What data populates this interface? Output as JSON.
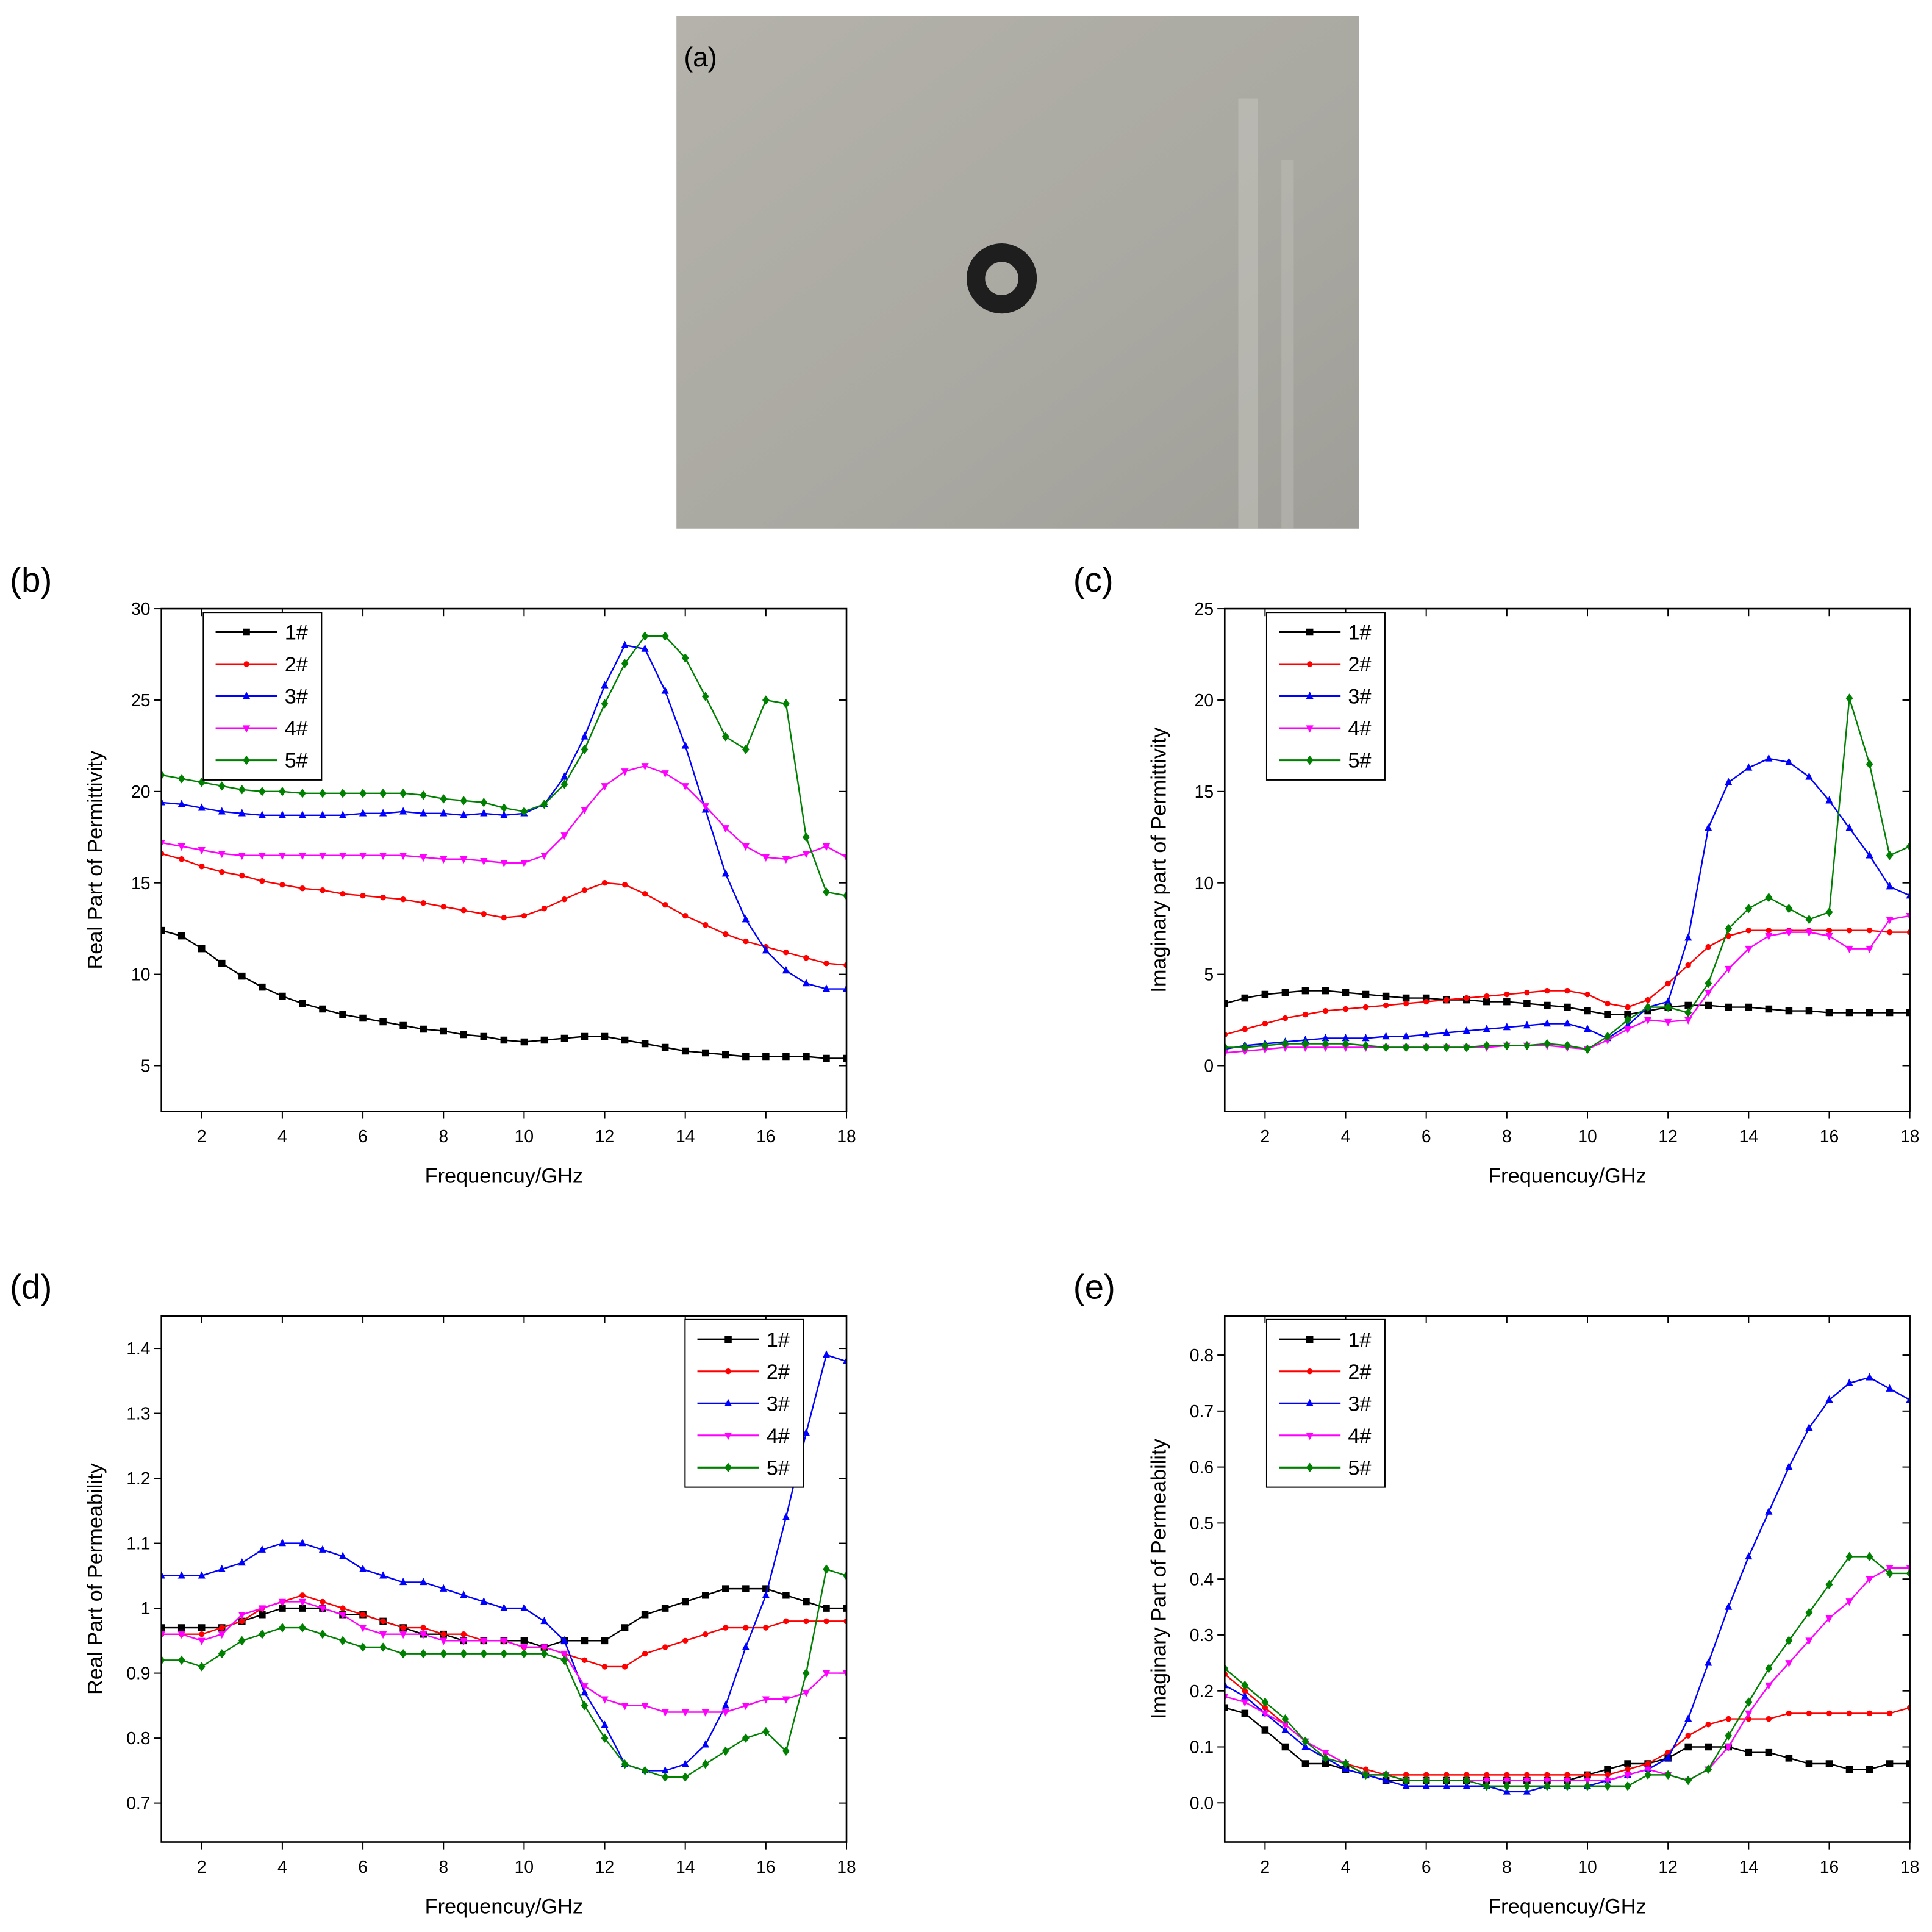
{
  "photo": {
    "label": "(a)"
  },
  "chart_data": [
    {
      "type": "line",
      "panel": "(b)",
      "xlabel": "Frequencuy/GHz",
      "ylabel": "Real Part of Permittivity",
      "legend": "upper left",
      "xlim": [
        1,
        18
      ],
      "xticks": [
        2,
        4,
        6,
        8,
        10,
        12,
        14,
        16,
        18
      ],
      "ylim": [
        2.5,
        30
      ],
      "yticks": [
        5,
        10,
        15,
        20,
        25,
        30
      ],
      "x": [
        1,
        1.5,
        2,
        2.5,
        3,
        3.5,
        4,
        4.5,
        5,
        5.5,
        6,
        6.5,
        7,
        7.5,
        8,
        8.5,
        9,
        9.5,
        10,
        10.5,
        11,
        11.5,
        12,
        12.5,
        13,
        13.5,
        14,
        14.5,
        15,
        15.5,
        16,
        16.5,
        17,
        17.5,
        18
      ],
      "series": [
        {
          "name": "1#",
          "color": "#000000",
          "marker": "square",
          "values": [
            12.4,
            12.1,
            11.4,
            10.6,
            9.9,
            9.3,
            8.8,
            8.4,
            8.1,
            7.8,
            7.6,
            7.4,
            7.2,
            7.0,
            6.9,
            6.7,
            6.6,
            6.4,
            6.3,
            6.4,
            6.5,
            6.6,
            6.6,
            6.4,
            6.2,
            6.0,
            5.8,
            5.7,
            5.6,
            5.5,
            5.5,
            5.5,
            5.5,
            5.4,
            5.4
          ]
        },
        {
          "name": "2#",
          "color": "#ff0000",
          "marker": "circle",
          "values": [
            16.6,
            16.3,
            15.9,
            15.6,
            15.4,
            15.1,
            14.9,
            14.7,
            14.6,
            14.4,
            14.3,
            14.2,
            14.1,
            13.9,
            13.7,
            13.5,
            13.3,
            13.1,
            13.2,
            13.6,
            14.1,
            14.6,
            15.0,
            14.9,
            14.4,
            13.8,
            13.2,
            12.7,
            12.2,
            11.8,
            11.5,
            11.2,
            10.9,
            10.6,
            10.5
          ]
        },
        {
          "name": "3#",
          "color": "#0000ff",
          "marker": "triangle-up",
          "values": [
            19.4,
            19.3,
            19.1,
            18.9,
            18.8,
            18.7,
            18.7,
            18.7,
            18.7,
            18.7,
            18.8,
            18.8,
            18.9,
            18.8,
            18.8,
            18.7,
            18.8,
            18.7,
            18.8,
            19.3,
            20.8,
            23.0,
            25.8,
            28.0,
            27.8,
            25.5,
            22.5,
            19.0,
            15.5,
            13.0,
            11.3,
            10.2,
            9.5,
            9.2,
            9.2
          ]
        },
        {
          "name": "4#",
          "color": "#ff00ff",
          "marker": "triangle-down",
          "values": [
            17.2,
            17.0,
            16.8,
            16.6,
            16.5,
            16.5,
            16.5,
            16.5,
            16.5,
            16.5,
            16.5,
            16.5,
            16.5,
            16.4,
            16.3,
            16.3,
            16.2,
            16.1,
            16.1,
            16.5,
            17.6,
            19.0,
            20.3,
            21.1,
            21.4,
            21.0,
            20.3,
            19.2,
            18.0,
            17.0,
            16.4,
            16.3,
            16.6,
            17.0,
            16.4
          ]
        },
        {
          "name": "5#",
          "color": "#008000",
          "marker": "diamond",
          "values": [
            20.9,
            20.7,
            20.5,
            20.3,
            20.1,
            20.0,
            20.0,
            19.9,
            19.9,
            19.9,
            19.9,
            19.9,
            19.9,
            19.8,
            19.6,
            19.5,
            19.4,
            19.1,
            18.9,
            19.3,
            20.4,
            22.3,
            24.8,
            27.0,
            28.5,
            28.5,
            27.3,
            25.2,
            23.0,
            22.3,
            25.0,
            24.8,
            17.5,
            14.5,
            14.3
          ]
        }
      ]
    },
    {
      "type": "line",
      "panel": "(c)",
      "xlabel": "Frequencuy/GHz",
      "ylabel": "Imaginary part of Permittivity",
      "legend": "upper left",
      "xlim": [
        1,
        18
      ],
      "xticks": [
        2,
        4,
        6,
        8,
        10,
        12,
        14,
        16,
        18
      ],
      "ylim": [
        -2.5,
        25
      ],
      "yticks": [
        0,
        5,
        10,
        15,
        20,
        25
      ],
      "x": [
        1,
        1.5,
        2,
        2.5,
        3,
        3.5,
        4,
        4.5,
        5,
        5.5,
        6,
        6.5,
        7,
        7.5,
        8,
        8.5,
        9,
        9.5,
        10,
        10.5,
        11,
        11.5,
        12,
        12.5,
        13,
        13.5,
        14,
        14.5,
        15,
        15.5,
        16,
        16.5,
        17,
        17.5,
        18
      ],
      "series": [
        {
          "name": "1#",
          "color": "#000000",
          "marker": "square",
          "values": [
            3.4,
            3.7,
            3.9,
            4.0,
            4.1,
            4.1,
            4.0,
            3.9,
            3.8,
            3.7,
            3.7,
            3.6,
            3.6,
            3.5,
            3.5,
            3.4,
            3.3,
            3.2,
            3.0,
            2.8,
            2.8,
            3.0,
            3.2,
            3.3,
            3.3,
            3.2,
            3.2,
            3.1,
            3.0,
            3.0,
            2.9,
            2.9,
            2.9,
            2.9,
            2.9
          ]
        },
        {
          "name": "2#",
          "color": "#ff0000",
          "marker": "circle",
          "values": [
            1.7,
            2.0,
            2.3,
            2.6,
            2.8,
            3.0,
            3.1,
            3.2,
            3.3,
            3.4,
            3.5,
            3.6,
            3.7,
            3.8,
            3.9,
            4.0,
            4.1,
            4.1,
            3.9,
            3.4,
            3.2,
            3.6,
            4.5,
            5.5,
            6.5,
            7.1,
            7.4,
            7.4,
            7.4,
            7.4,
            7.4,
            7.4,
            7.4,
            7.3,
            7.3
          ]
        },
        {
          "name": "3#",
          "color": "#0000ff",
          "marker": "triangle-up",
          "values": [
            0.9,
            1.1,
            1.2,
            1.3,
            1.4,
            1.5,
            1.5,
            1.5,
            1.6,
            1.6,
            1.7,
            1.8,
            1.9,
            2.0,
            2.1,
            2.2,
            2.3,
            2.3,
            2.0,
            1.5,
            2.2,
            3.2,
            3.5,
            7.0,
            13.0,
            15.5,
            16.3,
            16.8,
            16.6,
            15.8,
            14.5,
            13.0,
            11.5,
            9.8,
            9.3
          ]
        },
        {
          "name": "4#",
          "color": "#ff00ff",
          "marker": "triangle-down",
          "values": [
            0.7,
            0.8,
            0.9,
            1.0,
            1.0,
            1.0,
            1.0,
            1.0,
            1.0,
            1.0,
            1.0,
            1.0,
            1.0,
            1.0,
            1.1,
            1.1,
            1.1,
            1.0,
            0.9,
            1.4,
            2.0,
            2.5,
            2.4,
            2.5,
            4.0,
            5.3,
            6.4,
            7.1,
            7.3,
            7.3,
            7.1,
            6.4,
            6.4,
            8.0,
            8.2
          ]
        },
        {
          "name": "5#",
          "color": "#008000",
          "marker": "diamond",
          "values": [
            1.0,
            1.0,
            1.1,
            1.2,
            1.2,
            1.2,
            1.2,
            1.1,
            1.0,
            1.0,
            1.0,
            1.0,
            1.0,
            1.1,
            1.1,
            1.1,
            1.2,
            1.1,
            0.9,
            1.6,
            2.5,
            3.2,
            3.2,
            2.9,
            4.5,
            7.5,
            8.6,
            9.2,
            8.6,
            8.0,
            8.4,
            20.1,
            16.5,
            11.5,
            12.0
          ]
        }
      ]
    },
    {
      "type": "line",
      "panel": "(d)",
      "xlabel": "Frequencuy/GHz",
      "ylabel": "Real Part of  Permeability",
      "legend": "upper right",
      "xlim": [
        1,
        18
      ],
      "xticks": [
        2,
        4,
        6,
        8,
        10,
        12,
        14,
        16,
        18
      ],
      "ylim": [
        0.64,
        1.45
      ],
      "yticks": [
        0.7,
        0.8,
        0.9,
        1.0,
        1.1,
        1.2,
        1.3,
        1.4
      ],
      "x": [
        1,
        1.5,
        2,
        2.5,
        3,
        3.5,
        4,
        4.5,
        5,
        5.5,
        6,
        6.5,
        7,
        7.5,
        8,
        8.5,
        9,
        9.5,
        10,
        10.5,
        11,
        11.5,
        12,
        12.5,
        13,
        13.5,
        14,
        14.5,
        15,
        15.5,
        16,
        16.5,
        17,
        17.5,
        18
      ],
      "series": [
        {
          "name": "1#",
          "color": "#000000",
          "marker": "square",
          "values": [
            0.97,
            0.97,
            0.97,
            0.97,
            0.98,
            0.99,
            1.0,
            1.0,
            1.0,
            0.99,
            0.99,
            0.98,
            0.97,
            0.96,
            0.96,
            0.95,
            0.95,
            0.95,
            0.95,
            0.94,
            0.95,
            0.95,
            0.95,
            0.97,
            0.99,
            1.0,
            1.01,
            1.02,
            1.03,
            1.03,
            1.03,
            1.02,
            1.01,
            1.0,
            1.0
          ]
        },
        {
          "name": "2#",
          "color": "#ff0000",
          "marker": "circle",
          "values": [
            0.96,
            0.96,
            0.96,
            0.97,
            0.98,
            1.0,
            1.01,
            1.02,
            1.01,
            1.0,
            0.99,
            0.98,
            0.97,
            0.97,
            0.96,
            0.96,
            0.95,
            0.95,
            0.94,
            0.94,
            0.93,
            0.92,
            0.91,
            0.91,
            0.93,
            0.94,
            0.95,
            0.96,
            0.97,
            0.97,
            0.97,
            0.98,
            0.98,
            0.98,
            0.98
          ]
        },
        {
          "name": "3#",
          "color": "#0000ff",
          "marker": "triangle-up",
          "values": [
            1.05,
            1.05,
            1.05,
            1.06,
            1.07,
            1.09,
            1.1,
            1.1,
            1.09,
            1.08,
            1.06,
            1.05,
            1.04,
            1.04,
            1.03,
            1.02,
            1.01,
            1.0,
            1.0,
            0.98,
            0.95,
            0.87,
            0.82,
            0.76,
            0.75,
            0.75,
            0.76,
            0.79,
            0.85,
            0.94,
            1.02,
            1.14,
            1.27,
            1.39,
            1.38
          ]
        },
        {
          "name": "4#",
          "color": "#ff00ff",
          "marker": "triangle-down",
          "values": [
            0.96,
            0.96,
            0.95,
            0.96,
            0.99,
            1.0,
            1.01,
            1.01,
            1.0,
            0.99,
            0.97,
            0.96,
            0.96,
            0.96,
            0.95,
            0.95,
            0.95,
            0.95,
            0.94,
            0.94,
            0.93,
            0.88,
            0.86,
            0.85,
            0.85,
            0.84,
            0.84,
            0.84,
            0.84,
            0.85,
            0.86,
            0.86,
            0.87,
            0.9,
            0.9
          ]
        },
        {
          "name": "5#",
          "color": "#008000",
          "marker": "diamond",
          "values": [
            0.92,
            0.92,
            0.91,
            0.93,
            0.95,
            0.96,
            0.97,
            0.97,
            0.96,
            0.95,
            0.94,
            0.94,
            0.93,
            0.93,
            0.93,
            0.93,
            0.93,
            0.93,
            0.93,
            0.93,
            0.92,
            0.85,
            0.8,
            0.76,
            0.75,
            0.74,
            0.74,
            0.76,
            0.78,
            0.8,
            0.81,
            0.78,
            0.9,
            1.06,
            1.05
          ]
        }
      ]
    },
    {
      "type": "line",
      "panel": "(e)",
      "xlabel": "Frequencuy/GHz",
      "ylabel": "Imaginary Part of Permeability",
      "legend": "upper left",
      "xlim": [
        1,
        18
      ],
      "xticks": [
        2,
        4,
        6,
        8,
        10,
        12,
        14,
        16,
        18
      ],
      "ylim": [
        -0.07,
        0.87
      ],
      "yticks": [
        {
          "value": 0,
          "label": "0.0"
        },
        0.1,
        0.2,
        0.3,
        0.4,
        0.5,
        0.6,
        0.7,
        0.8
      ],
      "x": [
        1,
        1.5,
        2,
        2.5,
        3,
        3.5,
        4,
        4.5,
        5,
        5.5,
        6,
        6.5,
        7,
        7.5,
        8,
        8.5,
        9,
        9.5,
        10,
        10.5,
        11,
        11.5,
        12,
        12.5,
        13,
        13.5,
        14,
        14.5,
        15,
        15.5,
        16,
        16.5,
        17,
        17.5,
        18
      ],
      "series": [
        {
          "name": "1#",
          "color": "#000000",
          "marker": "square",
          "values": [
            0.17,
            0.16,
            0.13,
            0.1,
            0.07,
            0.07,
            0.06,
            0.05,
            0.04,
            0.04,
            0.04,
            0.04,
            0.04,
            0.04,
            0.04,
            0.04,
            0.04,
            0.04,
            0.05,
            0.06,
            0.07,
            0.07,
            0.08,
            0.1,
            0.1,
            0.1,
            0.09,
            0.09,
            0.08,
            0.07,
            0.07,
            0.06,
            0.06,
            0.07,
            0.07
          ]
        },
        {
          "name": "2#",
          "color": "#ff0000",
          "marker": "circle",
          "values": [
            0.23,
            0.2,
            0.17,
            0.14,
            0.11,
            0.09,
            0.07,
            0.06,
            0.05,
            0.05,
            0.05,
            0.05,
            0.05,
            0.05,
            0.05,
            0.05,
            0.05,
            0.05,
            0.05,
            0.05,
            0.06,
            0.07,
            0.09,
            0.12,
            0.14,
            0.15,
            0.15,
            0.15,
            0.16,
            0.16,
            0.16,
            0.16,
            0.16,
            0.16,
            0.17
          ]
        },
        {
          "name": "3#",
          "color": "#0000ff",
          "marker": "triangle-up",
          "values": [
            0.21,
            0.19,
            0.16,
            0.13,
            0.1,
            0.08,
            0.06,
            0.05,
            0.04,
            0.03,
            0.03,
            0.03,
            0.03,
            0.03,
            0.02,
            0.02,
            0.03,
            0.03,
            0.03,
            0.04,
            0.05,
            0.06,
            0.08,
            0.15,
            0.25,
            0.35,
            0.44,
            0.52,
            0.6,
            0.67,
            0.72,
            0.75,
            0.76,
            0.74,
            0.72
          ]
        },
        {
          "name": "4#",
          "color": "#ff00ff",
          "marker": "triangle-down",
          "values": [
            0.19,
            0.18,
            0.16,
            0.14,
            0.11,
            0.09,
            0.07,
            0.05,
            0.05,
            0.04,
            0.04,
            0.04,
            0.04,
            0.04,
            0.04,
            0.04,
            0.04,
            0.04,
            0.04,
            0.04,
            0.05,
            0.06,
            0.05,
            0.04,
            0.06,
            0.1,
            0.16,
            0.21,
            0.25,
            0.29,
            0.33,
            0.36,
            0.4,
            0.42,
            0.42
          ]
        },
        {
          "name": "5#",
          "color": "#008000",
          "marker": "diamond",
          "values": [
            0.24,
            0.21,
            0.18,
            0.15,
            0.11,
            0.08,
            0.07,
            0.05,
            0.05,
            0.04,
            0.04,
            0.04,
            0.04,
            0.03,
            0.03,
            0.03,
            0.03,
            0.03,
            0.03,
            0.03,
            0.03,
            0.05,
            0.05,
            0.04,
            0.06,
            0.12,
            0.18,
            0.24,
            0.29,
            0.34,
            0.39,
            0.44,
            0.44,
            0.41,
            0.41
          ]
        }
      ]
    }
  ]
}
